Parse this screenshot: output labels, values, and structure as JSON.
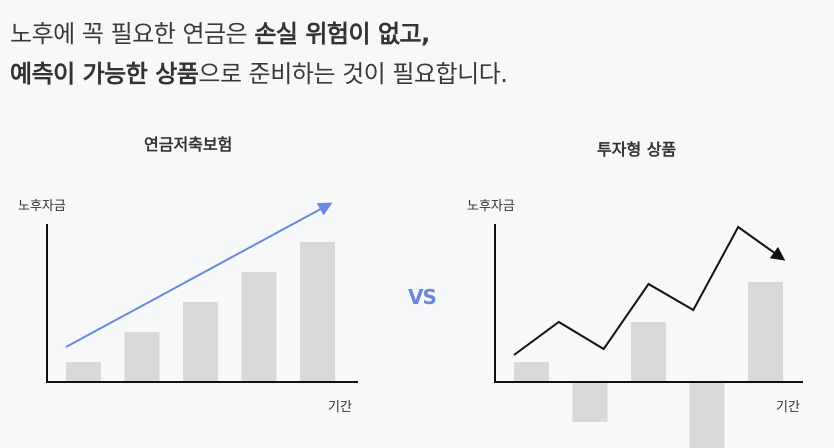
{
  "headline": {
    "line1_plain": "노후에 꼭 필요한 연금은 ",
    "line1_bold": "손실 위험이 없고,",
    "line2_bold": "예측이 가능한 상품",
    "line2_plain": "으로 준비하는 것이 필요합니다."
  },
  "comparison_label": "VS",
  "chart_data": [
    {
      "type": "bar",
      "title": "연금저축보험",
      "ylabel": "노후자금",
      "xlabel": "기간",
      "values": [
        2,
        5,
        8,
        11,
        14
      ],
      "ylim": [
        0,
        16
      ],
      "trend": "rising-arrow",
      "colors": {
        "bar": "#d9d9d9",
        "trend": "#6b86e0"
      }
    },
    {
      "type": "bar",
      "title": "투자형 상품",
      "ylabel": "노후자금",
      "xlabel": "기간",
      "values": [
        2,
        -4,
        6,
        -8,
        10
      ],
      "ylim": [
        -8,
        16
      ],
      "trend_line": [
        2.7,
        6,
        3.3,
        9.8,
        7.2,
        15.5,
        12.3
      ],
      "colors": {
        "bar": "#d9d9d9",
        "trend": "#111111"
      }
    }
  ]
}
